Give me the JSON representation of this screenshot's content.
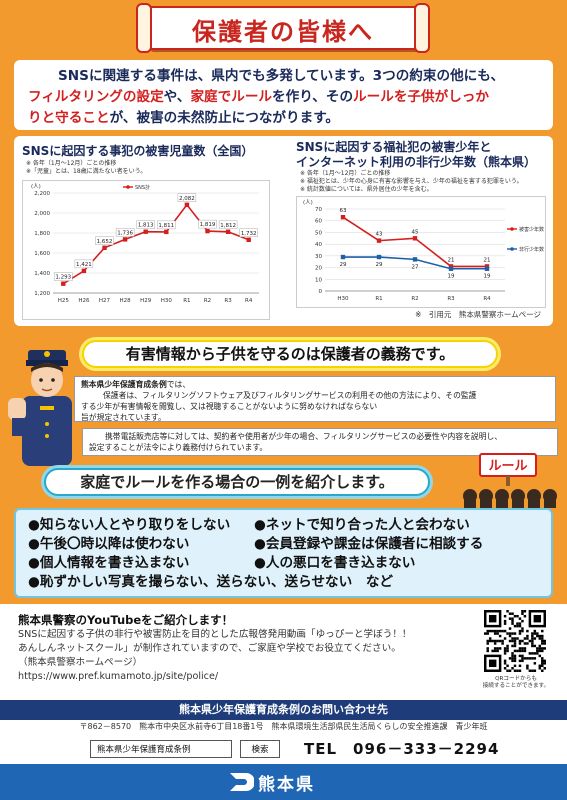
{
  "title": "保護者の皆様へ",
  "intro": {
    "l1": "SNSに関連する事件は、県内でも多発しています。3つの約束の他にも、",
    "l2a": "フィルタリングの設定",
    "l2b": "や、",
    "l2c": "家庭でルール",
    "l2d": "を作り、その",
    "l2e": "ルールを子供がしっか",
    "l3a": "りと守ること",
    "l3b": "が、被害の未然防止につながります。"
  },
  "chart1_text": {
    "title": "SNSに起因する事犯の被害児童数（全国）",
    "note1": "※ 各年（1月～12月）ごとの推移",
    "note2": "※「児童」とは、18歳に満たない者をいう。",
    "unit": "(人)"
  },
  "chart2_text": {
    "title1": "SNSに起因する福祉犯の被害少年と",
    "title2": "インターネット利用の非行少年数（熊本県）",
    "note1": "※ 各年（1月～12月）ごとの推移",
    "note2": "※ 福祉犯とは、少年の心身に有害な影響を与え、少年の福祉を害する犯罪をいう。",
    "note3": "※ 統計数値については、県外居住の少年を含む。",
    "unit": "(人)"
  },
  "chart_data": [
    {
      "type": "line",
      "title": "SNSに起因する事犯の被害児童数（全国）",
      "categories": [
        "H25",
        "H26",
        "H27",
        "H28",
        "H29",
        "H30",
        "R1",
        "R2",
        "R3",
        "R4"
      ],
      "series": [
        {
          "name": "SNS計",
          "color": "#d41f1f",
          "values": [
            1293,
            1421,
            1652,
            1736,
            1813,
            1811,
            2082,
            1819,
            1812,
            1732
          ]
        }
      ],
      "ylim": [
        1200,
        2200
      ],
      "yticks": [
        1200,
        1400,
        1600,
        1800,
        2000,
        2200
      ],
      "ylabel": "(人)",
      "grid": true,
      "legend": "top"
    },
    {
      "type": "line",
      "title": "SNSに起因する福祉犯の被害少年とインターネット利用の非行少年数（熊本県）",
      "categories": [
        "H30",
        "R1",
        "R2",
        "R3",
        "R4"
      ],
      "series": [
        {
          "name": "被害少年数",
          "color": "#d41f1f",
          "values": [
            63,
            43,
            45,
            21,
            21
          ]
        },
        {
          "name": "非行少年数",
          "color": "#1f5fa8",
          "values": [
            29,
            29,
            27,
            19,
            19
          ]
        }
      ],
      "ylim": [
        0,
        70
      ],
      "yticks": [
        0,
        10,
        20,
        30,
        40,
        50,
        60,
        70
      ],
      "ylabel": "(人)",
      "grid": true,
      "legend": "right"
    }
  ],
  "source": "※　引用元　熊本県警察ホームページ",
  "banner1": "有害情報から子供を守るのは保護者の義務です。",
  "law1": {
    "name": "熊本県少年保護育成条例",
    "l1": "では、",
    "l2": "保護者は、フィルタリングソフトウェア及びフィルタリングサービスの利用その他の方法により、その監護",
    "l3": "する少年が有害情報を閲覧し、又は視聴することがないように努めなければならない",
    "l4": "旨が規定されています。"
  },
  "law2": {
    "l1": "携帯電話販売店等に対しては、契約者や使用者が少年の場合、フィルタリングサービスの必要性や内容を説明し、",
    "l2": "設定することが法令により義務付けられています。"
  },
  "banner2": "家庭でルールを作る場合の一例を紹介します。",
  "rule_sign": "ルール",
  "rules": [
    "●知らない人とやり取りをしない",
    "●ネットで知り合った人と会わない",
    "●午後〇時以降は使わない",
    "●会員登録や課金は保護者に相談する",
    "●個人情報を書き込まない",
    "●人の悪口を書き込まない",
    "●恥ずかしい写真を撮らない、送らない、送らせない　など",
    ""
  ],
  "youtube": {
    "title": "熊本県警察のYouTubeをご紹介します！",
    "l1": "SNSに起因する子供の非行や被害防止を目的とした広報啓発用動画「ゆっぴーと学ぼう！！",
    "l2": "あんしんネットスクール」が制作されていますので、ご家庭や学校でお役立てください。",
    "l3": "（熊本県警察ホームページ）",
    "url": "https://www.pref.kumamoto.jp/site/police/",
    "qr_note1": "QRコードからも",
    "qr_note2": "接続することができます。"
  },
  "contact": {
    "title": "熊本県少年保護育成条例のお問い合わせ先",
    "address": "〒862－8570　熊本市中央区水前寺6丁目18番1号　熊本県環境生活部県民生活局くらしの安全推進課　青少年班",
    "search_value": "熊本県少年保護育成条例",
    "search_button": "検索",
    "tel": "TEL　096－333－2294"
  },
  "footer": {
    "pref": "熊本県"
  },
  "colors": {
    "orange": "#f29a2e",
    "red": "#d41f1f",
    "navy": "#1f3c7a",
    "blue": "#1f67b5"
  }
}
